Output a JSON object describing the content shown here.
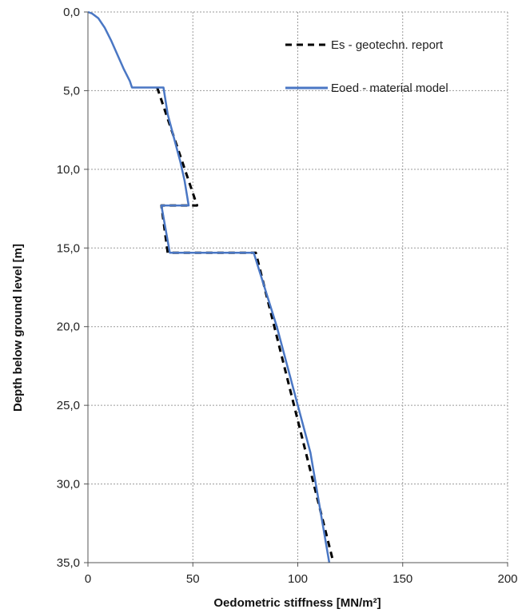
{
  "chart_data": {
    "type": "line",
    "title": "",
    "xlabel": "Oedometric stiffness [MN/m²]",
    "ylabel": "Depth below ground level [m]",
    "xlim": [
      0,
      200
    ],
    "ylim": [
      0,
      35
    ],
    "y_inverted": true,
    "x_ticks": [
      0,
      50,
      100,
      150,
      200
    ],
    "x_tick_labels": [
      "0",
      "50",
      "100",
      "150",
      "200"
    ],
    "y_ticks": [
      0,
      5,
      10,
      15,
      20,
      25,
      30,
      35
    ],
    "y_tick_labels": [
      "0,0",
      "5,0",
      "10,0",
      "15,0",
      "20,0",
      "25,0",
      "30,0",
      "35,0"
    ],
    "grid": true,
    "legend_position": "top-right",
    "series": [
      {
        "name": "Es - geotechn. report",
        "color": "#000000",
        "style": "dashed",
        "points": [
          [
            33,
            4.8
          ],
          [
            52,
            12.3
          ],
          [
            35,
            12.3
          ],
          [
            38,
            15.3
          ],
          [
            80,
            15.3
          ],
          [
            117,
            35
          ]
        ]
      },
      {
        "name": "Eoed - material model",
        "color": "#4a77c4",
        "style": "solid",
        "points": [
          [
            0,
            0
          ],
          [
            2,
            0.1
          ],
          [
            5,
            0.4
          ],
          [
            8,
            1.0
          ],
          [
            11,
            1.8
          ],
          [
            14,
            2.7
          ],
          [
            17,
            3.6
          ],
          [
            20,
            4.4
          ],
          [
            21,
            4.8
          ],
          [
            36,
            4.8
          ],
          [
            38,
            6.5
          ],
          [
            41,
            8.0
          ],
          [
            44,
            9.5
          ],
          [
            46,
            10.7
          ],
          [
            48,
            12.3
          ],
          [
            35,
            12.3
          ],
          [
            39,
            15.3
          ],
          [
            79,
            15.3
          ],
          [
            90,
            20.0
          ],
          [
            100,
            25.0
          ],
          [
            106,
            28.0
          ],
          [
            115,
            35
          ]
        ]
      }
    ]
  }
}
